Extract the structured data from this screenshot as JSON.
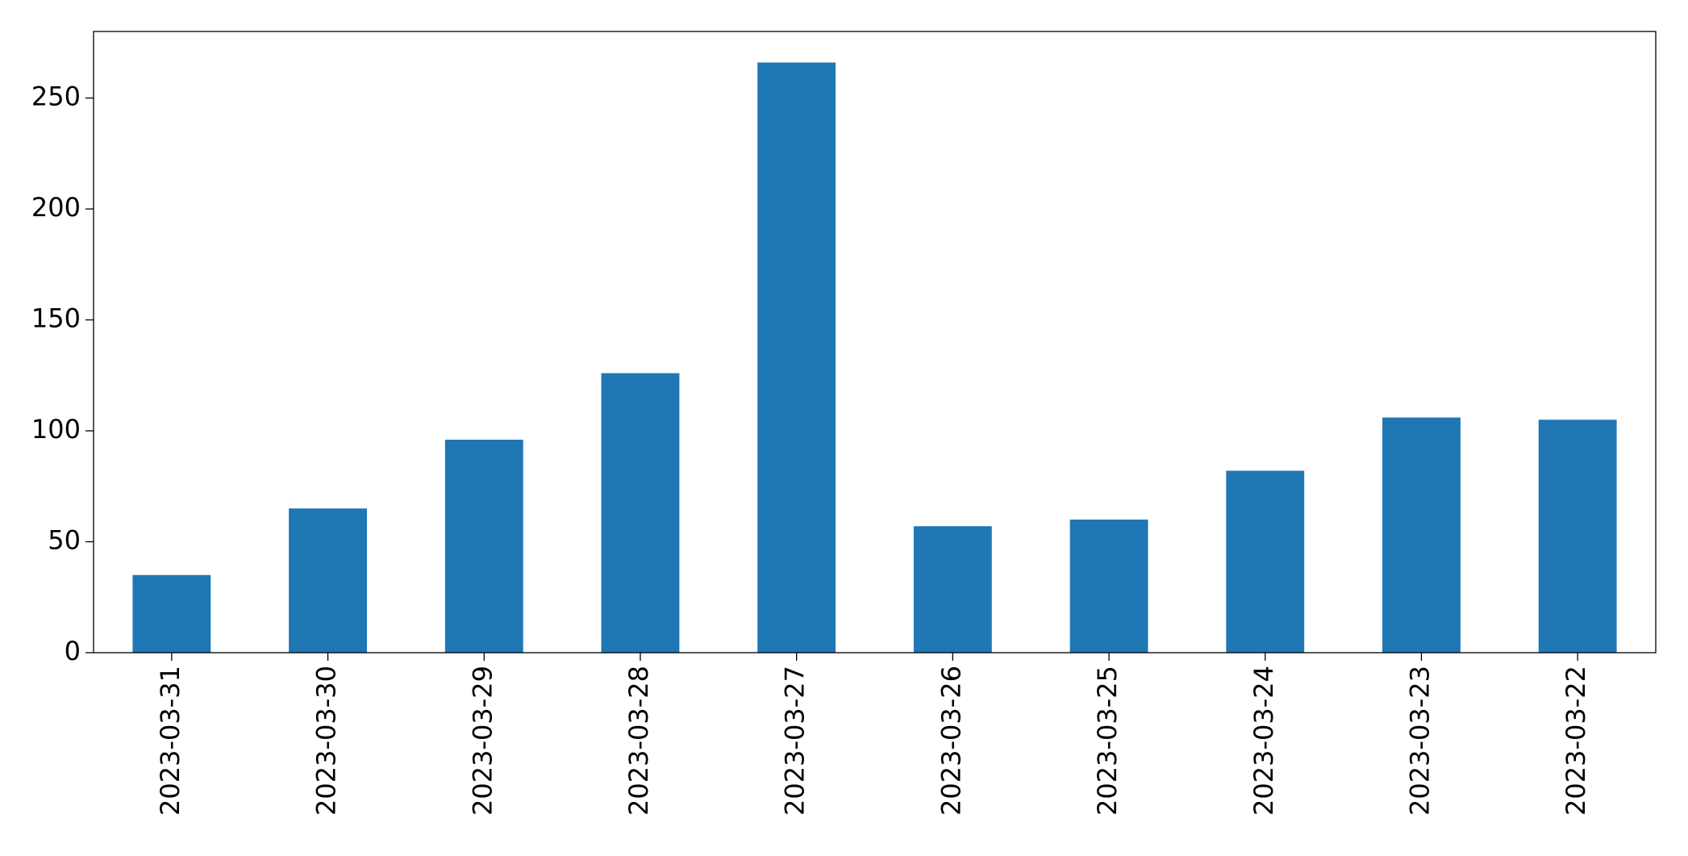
{
  "chart_data": {
    "type": "bar",
    "categories": [
      "2023-03-31",
      "2023-03-30",
      "2023-03-29",
      "2023-03-28",
      "2023-03-27",
      "2023-03-26",
      "2023-03-25",
      "2023-03-24",
      "2023-03-23",
      "2023-03-22"
    ],
    "values": [
      35,
      65,
      96,
      126,
      266,
      57,
      60,
      82,
      106,
      105
    ],
    "color": "#1f77b4",
    "ylim": [
      0,
      280
    ],
    "yticks": [
      0,
      50,
      100,
      150,
      200,
      250
    ],
    "grid": false
  }
}
